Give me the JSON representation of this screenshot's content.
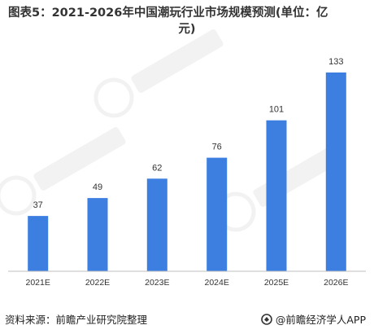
{
  "title": {
    "line1": "图表5：2021-2026年中国潮玩行业市场规模预测(单位：亿",
    "line2": "元)"
  },
  "chart_data": {
    "type": "bar",
    "title": "图表5：2021-2026年中国潮玩行业市场规模预测(单位：亿元)",
    "categories": [
      "2021E",
      "2022E",
      "2023E",
      "2024E",
      "2025E",
      "2026E"
    ],
    "values": [
      37,
      49,
      62,
      76,
      101,
      133
    ],
    "data_labels": [
      "37",
      "49",
      "62",
      "76",
      "101",
      "133"
    ],
    "ylim": [
      0,
      140
    ],
    "xlabel": "",
    "ylabel": "",
    "grid": false,
    "legend": "none",
    "bar_color": "#3d7ee1"
  },
  "footer": {
    "source": "资料来源：前瞻产业研究院整理",
    "brand": "@前瞻经济学人APP"
  },
  "colors": {
    "bar": "#3d7ee1",
    "axis": "#bfbfbf",
    "text": "#333333"
  },
  "icons": {
    "brand_icon": "qianzhan-logo-icon"
  }
}
